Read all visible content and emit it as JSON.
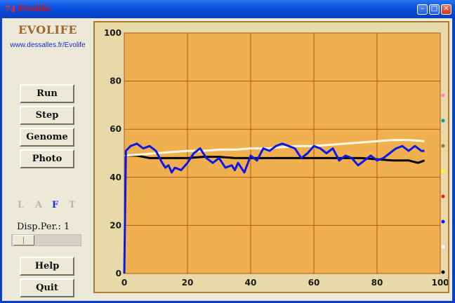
{
  "window": {
    "title": "Evolife",
    "icon_label": "74"
  },
  "brand": {
    "name": "EVOLIFE",
    "url": "www.dessalles.fr/Evolife"
  },
  "buttons": {
    "run": "Run",
    "step": "Step",
    "genome": "Genome",
    "photo": "Photo",
    "help": "Help",
    "quit": "Quit"
  },
  "modes": [
    {
      "label": "L",
      "active": false
    },
    {
      "label": "A",
      "active": false
    },
    {
      "label": "F",
      "active": true
    },
    {
      "label": "T",
      "active": false
    }
  ],
  "display_period": {
    "label": "Disp.Per.: 1",
    "value": 1
  },
  "colors": {
    "plot_bg": "#f0b050",
    "grid": "#b05818",
    "black_series": "#000000",
    "white_series": "#fffae8",
    "blue_series": "#0a18e8"
  },
  "legend_dots": [
    "#ff80c0",
    "#00a0b0",
    "#b07020",
    "#ffff00",
    "#ff2000",
    "#1010ff",
    "#ffffff",
    "#000000"
  ],
  "chart_data": {
    "type": "line",
    "xlim": [
      0,
      100
    ],
    "ylim": [
      0,
      100
    ],
    "x_ticks": [
      "0",
      "20",
      "40",
      "60",
      "80",
      "100"
    ],
    "y_ticks": [
      "0",
      "20",
      "40",
      "60",
      "80",
      "100"
    ],
    "grid": true,
    "series": [
      {
        "color": "#000000",
        "x": [
          0,
          2,
          4,
          6,
          8,
          10,
          15,
          20,
          25,
          30,
          35,
          40,
          45,
          50,
          55,
          60,
          65,
          70,
          75,
          80,
          85,
          90,
          93,
          95
        ],
        "y": [
          49,
          49,
          49,
          48.5,
          48,
          48,
          48,
          48,
          48.5,
          48.5,
          48,
          48,
          48,
          48,
          48,
          48,
          48,
          48,
          48,
          47.5,
          47,
          47,
          46,
          47
        ]
      },
      {
        "color": "#fffae8",
        "x": [
          0,
          5,
          10,
          15,
          20,
          25,
          30,
          35,
          40,
          45,
          50,
          55,
          60,
          65,
          70,
          75,
          80,
          85,
          90,
          95
        ],
        "y": [
          49,
          49.5,
          50,
          50.5,
          51,
          51,
          51.5,
          51.5,
          52,
          52,
          52.5,
          53,
          53,
          53.5,
          54,
          54.5,
          55,
          55.5,
          55.5,
          55
        ]
      },
      {
        "color": "#0a18e8",
        "x": [
          0,
          0.5,
          2,
          4,
          6,
          8,
          10,
          12,
          13,
          14,
          15,
          16,
          18,
          20,
          22,
          24,
          26,
          28,
          30,
          32,
          34,
          35,
          36,
          38,
          40,
          42,
          44,
          46,
          48,
          50,
          52,
          54,
          56,
          58,
          60,
          62,
          64,
          66,
          68,
          70,
          72,
          74,
          76,
          78,
          80,
          82,
          84,
          86,
          88,
          90,
          92,
          94,
          95
        ],
        "y": [
          0,
          51,
          53,
          54,
          52,
          53,
          51,
          46,
          44,
          45,
          42,
          44,
          43,
          46,
          50,
          52,
          48,
          46,
          48,
          44,
          45,
          43,
          46,
          42,
          49,
          47,
          52,
          51,
          53,
          54,
          53,
          52,
          48,
          50,
          53,
          52,
          50,
          52,
          47,
          49,
          48,
          45,
          47,
          49,
          47,
          48,
          50,
          52,
          53,
          51,
          53,
          51,
          51
        ]
      }
    ]
  }
}
